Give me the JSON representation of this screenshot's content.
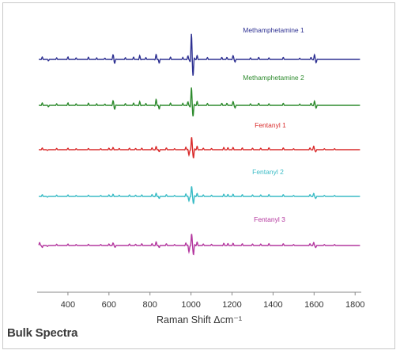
{
  "caption": "Bulk Spectra",
  "chart_data": {
    "type": "line",
    "title": "",
    "xlabel": "Raman Shift Δcm⁻¹",
    "ylabel": "",
    "xlim": [
      250,
      1830
    ],
    "xticks": [
      400,
      600,
      800,
      1000,
      1200,
      1400,
      1600,
      1800
    ],
    "grid": false,
    "legend": "labels placed above each offset trace",
    "series": [
      {
        "name": "Methamphetamine 1",
        "color": "#2e3192",
        "peaks": [
          {
            "x": 275,
            "y": 1.0
          },
          {
            "x": 305,
            "y": -0.6
          },
          {
            "x": 345,
            "y": 0.6
          },
          {
            "x": 400,
            "y": 1.0
          },
          {
            "x": 440,
            "y": 0.6
          },
          {
            "x": 500,
            "y": 0.9
          },
          {
            "x": 540,
            "y": 0.6
          },
          {
            "x": 580,
            "y": 0.5
          },
          {
            "x": 620,
            "y": 1.8
          },
          {
            "x": 628,
            "y": -1.5
          },
          {
            "x": 680,
            "y": 0.7
          },
          {
            "x": 720,
            "y": 0.9
          },
          {
            "x": 750,
            "y": 1.5
          },
          {
            "x": 780,
            "y": 0.7
          },
          {
            "x": 830,
            "y": 2.0
          },
          {
            "x": 845,
            "y": -1.5
          },
          {
            "x": 900,
            "y": 0.9
          },
          {
            "x": 960,
            "y": 0.8
          },
          {
            "x": 985,
            "y": 1.4
          },
          {
            "x": 1002,
            "y": 10.0
          },
          {
            "x": 1010,
            "y": -6.0
          },
          {
            "x": 1030,
            "y": 1.6
          },
          {
            "x": 1080,
            "y": 0.7
          },
          {
            "x": 1150,
            "y": 0.8
          },
          {
            "x": 1175,
            "y": 0.8
          },
          {
            "x": 1205,
            "y": 1.5
          },
          {
            "x": 1215,
            "y": -1.0
          },
          {
            "x": 1290,
            "y": 0.6
          },
          {
            "x": 1330,
            "y": 0.8
          },
          {
            "x": 1380,
            "y": 0.6
          },
          {
            "x": 1450,
            "y": 0.8
          },
          {
            "x": 1530,
            "y": 0.5
          },
          {
            "x": 1585,
            "y": 0.8
          },
          {
            "x": 1602,
            "y": 1.8
          },
          {
            "x": 1610,
            "y": -1.2
          }
        ]
      },
      {
        "name": "Methamphetamine 2",
        "color": "#2e8b2e",
        "peaks": [
          {
            "x": 275,
            "y": 1.0
          },
          {
            "x": 305,
            "y": -0.6
          },
          {
            "x": 345,
            "y": 0.6
          },
          {
            "x": 400,
            "y": 1.0
          },
          {
            "x": 440,
            "y": 0.6
          },
          {
            "x": 500,
            "y": 0.9
          },
          {
            "x": 540,
            "y": 0.6
          },
          {
            "x": 580,
            "y": 0.5
          },
          {
            "x": 620,
            "y": 1.8
          },
          {
            "x": 628,
            "y": -1.5
          },
          {
            "x": 680,
            "y": 0.7
          },
          {
            "x": 720,
            "y": 0.9
          },
          {
            "x": 750,
            "y": 1.5
          },
          {
            "x": 780,
            "y": 0.7
          },
          {
            "x": 830,
            "y": 2.4
          },
          {
            "x": 845,
            "y": -1.5
          },
          {
            "x": 900,
            "y": 0.9
          },
          {
            "x": 960,
            "y": 0.8
          },
          {
            "x": 985,
            "y": 1.4
          },
          {
            "x": 1002,
            "y": 7.0
          },
          {
            "x": 1010,
            "y": -4.0
          },
          {
            "x": 1030,
            "y": 1.6
          },
          {
            "x": 1080,
            "y": 0.7
          },
          {
            "x": 1150,
            "y": 0.8
          },
          {
            "x": 1175,
            "y": 0.8
          },
          {
            "x": 1205,
            "y": 1.5
          },
          {
            "x": 1215,
            "y": -1.0
          },
          {
            "x": 1290,
            "y": 0.6
          },
          {
            "x": 1330,
            "y": 0.8
          },
          {
            "x": 1380,
            "y": 0.6
          },
          {
            "x": 1450,
            "y": 0.8
          },
          {
            "x": 1530,
            "y": 0.5
          },
          {
            "x": 1585,
            "y": 0.8
          },
          {
            "x": 1602,
            "y": 1.6
          },
          {
            "x": 1610,
            "y": -1.0
          }
        ]
      },
      {
        "name": "Fentanyl 1",
        "color": "#d92b2b",
        "peaks": [
          {
            "x": 275,
            "y": 0.7
          },
          {
            "x": 300,
            "y": -0.3
          },
          {
            "x": 345,
            "y": 0.5
          },
          {
            "x": 400,
            "y": 0.6
          },
          {
            "x": 440,
            "y": 0.4
          },
          {
            "x": 500,
            "y": 0.5
          },
          {
            "x": 560,
            "y": 0.4
          },
          {
            "x": 600,
            "y": 0.6
          },
          {
            "x": 620,
            "y": 0.9
          },
          {
            "x": 650,
            "y": 0.5
          },
          {
            "x": 700,
            "y": 0.6
          },
          {
            "x": 730,
            "y": 0.5
          },
          {
            "x": 760,
            "y": 0.6
          },
          {
            "x": 810,
            "y": 0.7
          },
          {
            "x": 830,
            "y": 1.3
          },
          {
            "x": 845,
            "y": -0.8
          },
          {
            "x": 880,
            "y": 0.7
          },
          {
            "x": 920,
            "y": 0.4
          },
          {
            "x": 975,
            "y": 1.0
          },
          {
            "x": 990,
            "y": -2.2
          },
          {
            "x": 1003,
            "y": 5.0
          },
          {
            "x": 1012,
            "y": -3.2
          },
          {
            "x": 1030,
            "y": 1.4
          },
          {
            "x": 1060,
            "y": 0.6
          },
          {
            "x": 1100,
            "y": 0.5
          },
          {
            "x": 1160,
            "y": 0.9
          },
          {
            "x": 1180,
            "y": 0.8
          },
          {
            "x": 1205,
            "y": 0.9
          },
          {
            "x": 1250,
            "y": 0.7
          },
          {
            "x": 1300,
            "y": 0.6
          },
          {
            "x": 1340,
            "y": 0.6
          },
          {
            "x": 1380,
            "y": 0.7
          },
          {
            "x": 1450,
            "y": 0.7
          },
          {
            "x": 1500,
            "y": 0.4
          },
          {
            "x": 1580,
            "y": 0.7
          },
          {
            "x": 1598,
            "y": 1.4
          },
          {
            "x": 1608,
            "y": -0.8
          },
          {
            "x": 1650,
            "y": 0.4
          },
          {
            "x": 1700,
            "y": 0.4
          }
        ]
      },
      {
        "name": "Fentanyl 2",
        "color": "#3bbcc6",
        "peaks": [
          {
            "x": 275,
            "y": 0.7
          },
          {
            "x": 300,
            "y": -0.3
          },
          {
            "x": 345,
            "y": 0.5
          },
          {
            "x": 400,
            "y": 0.6
          },
          {
            "x": 440,
            "y": 0.4
          },
          {
            "x": 500,
            "y": 0.5
          },
          {
            "x": 560,
            "y": 0.4
          },
          {
            "x": 600,
            "y": 0.6
          },
          {
            "x": 620,
            "y": 0.9
          },
          {
            "x": 650,
            "y": 0.5
          },
          {
            "x": 700,
            "y": 0.6
          },
          {
            "x": 730,
            "y": 0.5
          },
          {
            "x": 760,
            "y": 0.6
          },
          {
            "x": 810,
            "y": 0.7
          },
          {
            "x": 830,
            "y": 1.3
          },
          {
            "x": 845,
            "y": -0.8
          },
          {
            "x": 880,
            "y": 0.7
          },
          {
            "x": 920,
            "y": 0.4
          },
          {
            "x": 975,
            "y": 1.0
          },
          {
            "x": 990,
            "y": -1.8
          },
          {
            "x": 1003,
            "y": 4.0
          },
          {
            "x": 1012,
            "y": -2.8
          },
          {
            "x": 1030,
            "y": 1.2
          },
          {
            "x": 1060,
            "y": 0.6
          },
          {
            "x": 1100,
            "y": 0.5
          },
          {
            "x": 1160,
            "y": 0.9
          },
          {
            "x": 1180,
            "y": 0.8
          },
          {
            "x": 1205,
            "y": 0.9
          },
          {
            "x": 1250,
            "y": 0.7
          },
          {
            "x": 1300,
            "y": 0.6
          },
          {
            "x": 1340,
            "y": 0.6
          },
          {
            "x": 1380,
            "y": 0.7
          },
          {
            "x": 1450,
            "y": 0.7
          },
          {
            "x": 1500,
            "y": 0.4
          },
          {
            "x": 1580,
            "y": 0.7
          },
          {
            "x": 1598,
            "y": 1.2
          },
          {
            "x": 1608,
            "y": -0.8
          },
          {
            "x": 1650,
            "y": 0.4
          },
          {
            "x": 1700,
            "y": 0.4
          }
        ]
      },
      {
        "name": "Fentanyl 3",
        "color": "#b4389f",
        "peaks": [
          {
            "x": 262,
            "y": 1.2
          },
          {
            "x": 275,
            "y": -0.8
          },
          {
            "x": 300,
            "y": -0.4
          },
          {
            "x": 345,
            "y": 0.5
          },
          {
            "x": 400,
            "y": 0.6
          },
          {
            "x": 440,
            "y": 0.4
          },
          {
            "x": 500,
            "y": 0.5
          },
          {
            "x": 560,
            "y": 0.4
          },
          {
            "x": 600,
            "y": 0.6
          },
          {
            "x": 620,
            "y": 1.0
          },
          {
            "x": 630,
            "y": -0.7
          },
          {
            "x": 700,
            "y": 0.6
          },
          {
            "x": 730,
            "y": 0.5
          },
          {
            "x": 760,
            "y": 0.7
          },
          {
            "x": 810,
            "y": 0.7
          },
          {
            "x": 830,
            "y": 1.5
          },
          {
            "x": 845,
            "y": -0.8
          },
          {
            "x": 880,
            "y": 0.7
          },
          {
            "x": 920,
            "y": 0.4
          },
          {
            "x": 975,
            "y": 1.0
          },
          {
            "x": 990,
            "y": -2.6
          },
          {
            "x": 1003,
            "y": 4.6
          },
          {
            "x": 1012,
            "y": -3.6
          },
          {
            "x": 1030,
            "y": 1.4
          },
          {
            "x": 1060,
            "y": 0.6
          },
          {
            "x": 1100,
            "y": 0.5
          },
          {
            "x": 1160,
            "y": 0.9
          },
          {
            "x": 1180,
            "y": 0.8
          },
          {
            "x": 1205,
            "y": 0.9
          },
          {
            "x": 1250,
            "y": 0.7
          },
          {
            "x": 1300,
            "y": 0.6
          },
          {
            "x": 1340,
            "y": 0.6
          },
          {
            "x": 1380,
            "y": 0.7
          },
          {
            "x": 1450,
            "y": 0.7
          },
          {
            "x": 1500,
            "y": 0.4
          },
          {
            "x": 1580,
            "y": 0.7
          },
          {
            "x": 1598,
            "y": 1.2
          },
          {
            "x": 1608,
            "y": -0.8
          },
          {
            "x": 1650,
            "y": 0.4
          },
          {
            "x": 1700,
            "y": 0.4
          }
        ]
      }
    ]
  }
}
